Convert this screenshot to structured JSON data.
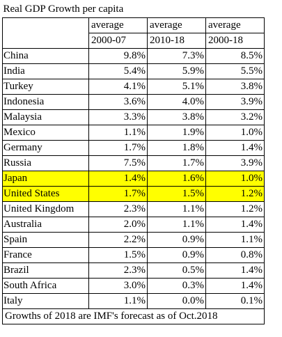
{
  "chart_data": {
    "type": "table",
    "title": "Real GDP Growth per capita",
    "columns": [
      {
        "label_top": "average",
        "label_bottom": "2000-07"
      },
      {
        "label_top": "average",
        "label_bottom": "2010-18"
      },
      {
        "label_top": "average",
        "label_bottom": "2000-18"
      }
    ],
    "rows": [
      {
        "country": "China",
        "values": [
          "9.8%",
          "7.3%",
          "8.5%"
        ],
        "highlight": false
      },
      {
        "country": "India",
        "values": [
          "5.4%",
          "5.9%",
          "5.5%"
        ],
        "highlight": false
      },
      {
        "country": "Turkey",
        "values": [
          "4.1%",
          "5.1%",
          "3.8%"
        ],
        "highlight": false
      },
      {
        "country": "Indonesia",
        "values": [
          "3.6%",
          "4.0%",
          "3.9%"
        ],
        "highlight": false
      },
      {
        "country": "Malaysia",
        "values": [
          "3.3%",
          "3.8%",
          "3.2%"
        ],
        "highlight": false
      },
      {
        "country": "Mexico",
        "values": [
          "1.1%",
          "1.9%",
          "1.0%"
        ],
        "highlight": false
      },
      {
        "country": "Germany",
        "values": [
          "1.7%",
          "1.8%",
          "1.4%"
        ],
        "highlight": false
      },
      {
        "country": "Russia",
        "values": [
          "7.5%",
          "1.7%",
          "3.9%"
        ],
        "highlight": false
      },
      {
        "country": "Japan",
        "values": [
          "1.4%",
          "1.6%",
          "1.0%"
        ],
        "highlight": true
      },
      {
        "country": "United States",
        "values": [
          "1.7%",
          "1.5%",
          "1.2%"
        ],
        "highlight": true
      },
      {
        "country": "United Kingdom",
        "values": [
          "2.3%",
          "1.1%",
          "1.2%"
        ],
        "highlight": false
      },
      {
        "country": "Australia",
        "values": [
          "2.0%",
          "1.1%",
          "1.4%"
        ],
        "highlight": false
      },
      {
        "country": "Spain",
        "values": [
          "2.2%",
          "0.9%",
          "1.1%"
        ],
        "highlight": false
      },
      {
        "country": "France",
        "values": [
          "1.5%",
          "0.9%",
          "0.8%"
        ],
        "highlight": false
      },
      {
        "country": "Brazil",
        "values": [
          "2.3%",
          "0.5%",
          "1.4%"
        ],
        "highlight": false
      },
      {
        "country": "South Africa",
        "values": [
          "3.0%",
          "0.3%",
          "1.4%"
        ],
        "highlight": false
      },
      {
        "country": "Italy",
        "values": [
          "1.1%",
          "0.0%",
          "0.1%"
        ],
        "highlight": false
      }
    ],
    "footnote": "Growths of 2018 are IMF's forecast as of Oct.2018",
    "colors": {
      "highlight": "#ffff00",
      "grid": "#000000"
    }
  }
}
